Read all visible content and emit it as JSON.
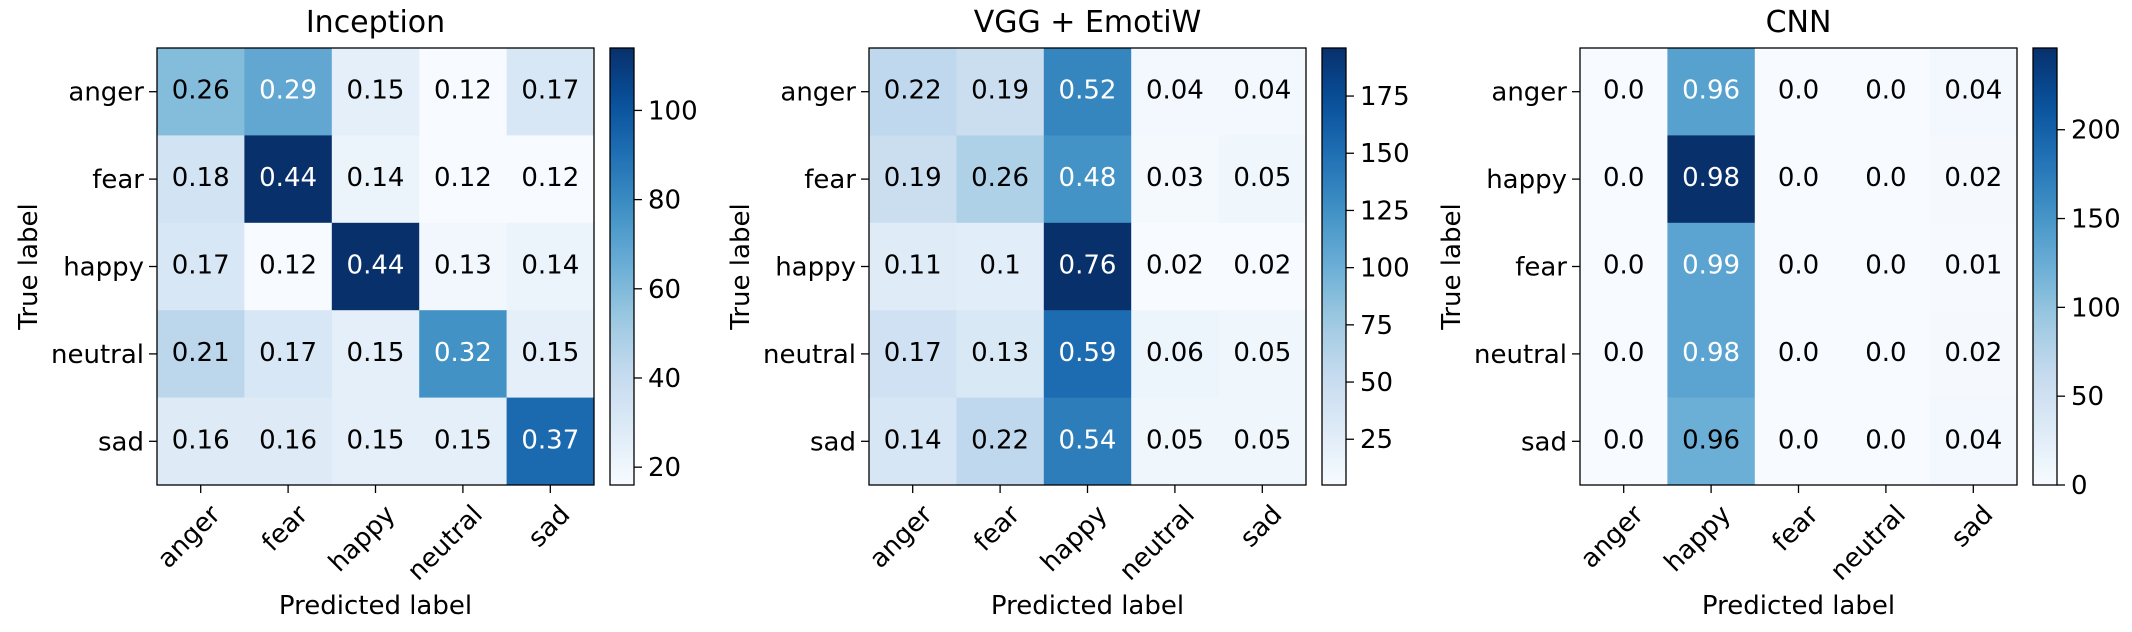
{
  "chart_data": [
    {
      "type": "heatmap",
      "title": "Inception",
      "xlabel": "Predicted label",
      "ylabel": "True label",
      "x_categories": [
        "anger",
        "fear",
        "happy",
        "neutral",
        "sad"
      ],
      "y_categories": [
        "anger",
        "fear",
        "happy",
        "neutral",
        "sad"
      ],
      "values": [
        [
          0.26,
          0.29,
          0.15,
          0.12,
          0.17
        ],
        [
          0.18,
          0.44,
          0.14,
          0.12,
          0.12
        ],
        [
          0.17,
          0.12,
          0.44,
          0.13,
          0.14
        ],
        [
          0.21,
          0.17,
          0.15,
          0.32,
          0.15
        ],
        [
          0.16,
          0.16,
          0.15,
          0.15,
          0.37
        ]
      ],
      "cell_labels": [
        [
          "0.26",
          "0.29",
          "0.15",
          "0.12",
          "0.17"
        ],
        [
          "0.18",
          "0.44",
          "0.14",
          "0.12",
          "0.12"
        ],
        [
          "0.17",
          "0.12",
          "0.44",
          "0.13",
          "0.14"
        ],
        [
          "0.21",
          "0.17",
          "0.15",
          "0.32",
          "0.15"
        ],
        [
          "0.16",
          "0.16",
          "0.15",
          "0.15",
          "0.37"
        ]
      ],
      "colorbar": {
        "range": [
          16,
          114
        ],
        "ticks": [
          20,
          40,
          60,
          80,
          100
        ],
        "colormap": "Blues"
      }
    },
    {
      "type": "heatmap",
      "title": "VGG + EmotiW",
      "xlabel": "Predicted label",
      "ylabel": "True label",
      "x_categories": [
        "anger",
        "fear",
        "happy",
        "neutral",
        "sad"
      ],
      "y_categories": [
        "anger",
        "fear",
        "happy",
        "neutral",
        "sad"
      ],
      "values": [
        [
          0.22,
          0.19,
          0.52,
          0.04,
          0.04
        ],
        [
          0.19,
          0.26,
          0.48,
          0.03,
          0.05
        ],
        [
          0.11,
          0.1,
          0.76,
          0.02,
          0.02
        ],
        [
          0.17,
          0.13,
          0.59,
          0.06,
          0.05
        ],
        [
          0.14,
          0.22,
          0.54,
          0.05,
          0.05
        ]
      ],
      "cell_labels": [
        [
          "0.22",
          "0.19",
          "0.52",
          "0.04",
          "0.04"
        ],
        [
          "0.19",
          "0.26",
          "0.48",
          "0.03",
          "0.05"
        ],
        [
          "0.11",
          "0.1",
          "0.76",
          "0.02",
          "0.02"
        ],
        [
          "0.17",
          "0.13",
          "0.59",
          "0.06",
          "0.05"
        ],
        [
          "0.14",
          "0.22",
          "0.54",
          "0.05",
          "0.05"
        ]
      ],
      "colorbar": {
        "range": [
          5,
          196
        ],
        "ticks": [
          25,
          50,
          75,
          100,
          125,
          150,
          175
        ],
        "colormap": "Blues"
      }
    },
    {
      "type": "heatmap",
      "title": "CNN",
      "xlabel": "Predicted label",
      "ylabel": "True label",
      "x_categories": [
        "anger",
        "happy",
        "fear",
        "neutral",
        "sad"
      ],
      "y_categories": [
        "anger",
        "happy",
        "fear",
        "neutral",
        "sad"
      ],
      "values": [
        [
          0.0,
          0.96,
          0.0,
          0.0,
          0.04
        ],
        [
          0.0,
          0.98,
          0.0,
          0.0,
          0.02
        ],
        [
          0.0,
          0.99,
          0.0,
          0.0,
          0.01
        ],
        [
          0.0,
          0.98,
          0.0,
          0.0,
          0.02
        ],
        [
          0.0,
          0.96,
          0.0,
          0.0,
          0.04
        ]
      ],
      "cell_labels": [
        [
          "0.0",
          "0.96",
          "0.0",
          "0.0",
          "0.04"
        ],
        [
          "0.0",
          "0.98",
          "0.0",
          "0.0",
          "0.02"
        ],
        [
          "0.0",
          "0.99",
          "0.0",
          "0.0",
          "0.01"
        ],
        [
          "0.0",
          "0.98",
          "0.0",
          "0.0",
          "0.02"
        ],
        [
          "0.0",
          "0.96",
          "0.0",
          "0.0",
          "0.04"
        ]
      ],
      "cell_intensity": [
        [
          0.0,
          0.56,
          0.0,
          0.0,
          0.02
        ],
        [
          0.0,
          1.0,
          0.0,
          0.0,
          0.012
        ],
        [
          0.0,
          0.55,
          0.0,
          0.0,
          0.006
        ],
        [
          0.0,
          0.55,
          0.0,
          0.0,
          0.012
        ],
        [
          0.0,
          0.5,
          0.0,
          0.0,
          0.02
        ]
      ],
      "colorbar": {
        "range": [
          0,
          246
        ],
        "ticks": [
          0,
          50,
          100,
          150,
          200
        ],
        "colormap": "Blues"
      }
    }
  ]
}
